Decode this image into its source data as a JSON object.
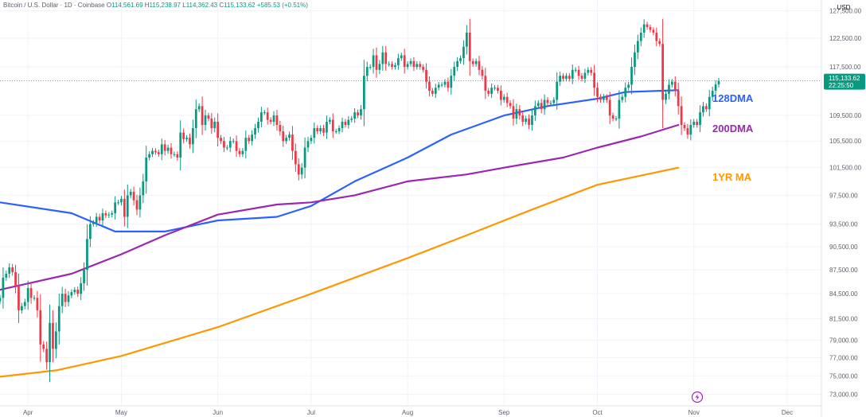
{
  "header": {
    "symbol": "Bitcoin / U.S. Dollar · 1D · Coinbase",
    "open_label": "O",
    "open": "114,561.69",
    "high_label": "H",
    "high": "115,238.97",
    "low_label": "L",
    "low": "114,362.43",
    "close_label": "C",
    "close": "115,133.62",
    "change": "+585.53 (+0.51%)",
    "currency": "USD"
  },
  "price_badge": {
    "price": "115,133.62",
    "countdown": "22:25:50",
    "value": 115133.62
  },
  "colors": {
    "up": "#089981",
    "down": "#f23645",
    "ma128": "#2962ff",
    "ma200": "#9c27b0",
    "ma1yr": "#ff9800"
  },
  "ma_labels": {
    "ma128": "128DMA",
    "ma200": "200DMA",
    "ma1yr": "1YR MA"
  },
  "icons": {
    "replay": "lightning-icon"
  },
  "chart_data": {
    "type": "candlestick",
    "title": "Bitcoin / U.S. Dollar · 1D · Coinbase",
    "x_axis": {
      "type": "date",
      "range": [
        "2025-03-23",
        "2025-12-12"
      ],
      "ticks": [
        {
          "date": "2025-04-01",
          "label": "Apr"
        },
        {
          "date": "2025-05-01",
          "label": "May"
        },
        {
          "date": "2025-06-01",
          "label": "Jun"
        },
        {
          "date": "2025-07-01",
          "label": "Jul"
        },
        {
          "date": "2025-08-01",
          "label": "Aug"
        },
        {
          "date": "2025-09-01",
          "label": "Sep"
        },
        {
          "date": "2025-10-01",
          "label": "Oct"
        },
        {
          "date": "2025-11-01",
          "label": "Nov"
        },
        {
          "date": "2025-12-01",
          "label": "Dec"
        }
      ]
    },
    "y_axis": {
      "scale": "log",
      "range": [
        71800,
        129500
      ],
      "ticks": [
        73000,
        75000,
        77000,
        79000,
        81500,
        84500,
        87500,
        90500,
        93500,
        97500,
        101500,
        105500,
        109500,
        117500,
        122500,
        127500
      ],
      "tick_labels": [
        "73,000.00",
        "75,000.00",
        "77,000.00",
        "79,000.00",
        "81,500.00",
        "84,500.00",
        "87,500.00",
        "90,500.00",
        "93,500.00",
        "97,500.00",
        "101,500.00",
        "105,500.00",
        "109,500.00",
        "117,500.00",
        "122,500.00",
        "127,500.00"
      ]
    },
    "candles": {
      "start_date": "2025-03-23",
      "close_path": [
        84000,
        86500,
        87000,
        87800,
        87200,
        85500,
        82500,
        83000,
        83500,
        85200,
        84000,
        84000,
        82500,
        78500,
        78000,
        76500,
        81000,
        78000,
        80000,
        83000,
        84500,
        83500,
        84300,
        84700,
        85000,
        84500,
        85800,
        87500,
        91500,
        93500,
        93700,
        94500,
        94000,
        95000,
        94700,
        94800,
        95000,
        96500,
        96500,
        97000,
        94500,
        97500,
        98000,
        96800,
        95500,
        97500,
        99500,
        103000,
        103500,
        104000,
        103800,
        103500,
        105000,
        104000,
        104500,
        103500,
        103500,
        103000,
        106800,
        105800,
        106000,
        105000,
        107500,
        110500,
        111000,
        108000,
        109500,
        109000,
        107500,
        108500,
        106000,
        105500,
        104500,
        104500,
        105500,
        105500,
        104000,
        103500,
        104000,
        106000,
        105500,
        106500,
        107500,
        108500,
        110000,
        110000,
        108800,
        108500,
        109500,
        108000,
        107000,
        105500,
        106000,
        106500,
        104000,
        102000,
        100500,
        101500,
        104500,
        105500,
        106000,
        107500,
        107000,
        107500,
        106800,
        108500,
        108800,
        107000,
        107000,
        107500,
        108500,
        108000,
        108800,
        109000,
        110000,
        109500,
        110500,
        116000,
        117500,
        117500,
        119500,
        117000,
        118000,
        120000,
        118000,
        118000,
        117500,
        117800,
        119000,
        119500,
        117500,
        118000,
        118500,
        117500,
        118000,
        117500,
        117000,
        115000,
        113500,
        113000,
        114000,
        114500,
        114500,
        115000,
        114000,
        116000,
        117500,
        118500,
        119000,
        121000,
        123500,
        118500,
        118000,
        118500,
        117000,
        116000,
        113500,
        113000,
        114000,
        114000,
        113500,
        112000,
        112500,
        111500,
        111000,
        109000,
        110500,
        109500,
        108500,
        109000,
        108000,
        109500,
        111000,
        111500,
        110500,
        112000,
        111500,
        111500,
        112000,
        115000,
        116000,
        115500,
        116000,
        115500,
        117000,
        117000,
        116000,
        115500,
        116500,
        117000,
        116500,
        114000,
        112500,
        112000,
        112500,
        112000,
        109500,
        109000,
        109000,
        112000,
        112500,
        114000,
        114500,
        117500,
        120000,
        122000,
        123500,
        125000,
        124500,
        124000,
        123500,
        122000,
        121500,
        112000,
        113000,
        114500,
        115000,
        113500,
        111000,
        108000,
        107500,
        106500,
        108000,
        108500,
        108000,
        110000,
        111000,
        110500,
        112500,
        113500,
        114548,
        115133.62
      ],
      "note": "daily OHLC, one candle per day; values approximate from chart"
    },
    "series": [
      {
        "name": "128DMA",
        "type": "line",
        "color": "#2962ff",
        "points": [
          [
            "2025-03-23",
            96500
          ],
          [
            "2025-04-15",
            95000
          ],
          [
            "2025-04-29",
            92500
          ],
          [
            "2025-05-15",
            92500
          ],
          [
            "2025-06-01",
            94000
          ],
          [
            "2025-06-20",
            94500
          ],
          [
            "2025-07-01",
            96000
          ],
          [
            "2025-07-15",
            99500
          ],
          [
            "2025-08-01",
            103000
          ],
          [
            "2025-08-15",
            106500
          ],
          [
            "2025-09-01",
            109500
          ],
          [
            "2025-09-15",
            111000
          ],
          [
            "2025-10-01",
            112200
          ],
          [
            "2025-10-10",
            113300
          ],
          [
            "2025-10-27",
            113600
          ]
        ]
      },
      {
        "name": "200DMA",
        "type": "line",
        "color": "#9c27b0",
        "points": [
          [
            "2025-03-23",
            85000
          ],
          [
            "2025-04-15",
            87000
          ],
          [
            "2025-05-01",
            89500
          ],
          [
            "2025-05-15",
            92000
          ],
          [
            "2025-06-01",
            94800
          ],
          [
            "2025-06-20",
            96200
          ],
          [
            "2025-07-01",
            96500
          ],
          [
            "2025-07-15",
            97500
          ],
          [
            "2025-08-01",
            99500
          ],
          [
            "2025-08-20",
            100500
          ],
          [
            "2025-09-01",
            101500
          ],
          [
            "2025-09-20",
            103000
          ],
          [
            "2025-10-01",
            104500
          ],
          [
            "2025-10-15",
            106200
          ],
          [
            "2025-10-27",
            108000
          ]
        ]
      },
      {
        "name": "1YR MA",
        "type": "line",
        "color": "#ff9800",
        "points": [
          [
            "2025-03-23",
            74900
          ],
          [
            "2025-04-10",
            75600
          ],
          [
            "2025-05-01",
            77200
          ],
          [
            "2025-06-01",
            80500
          ],
          [
            "2025-07-01",
            84500
          ],
          [
            "2025-08-01",
            89000
          ],
          [
            "2025-08-20",
            92000
          ],
          [
            "2025-09-10",
            95500
          ],
          [
            "2025-10-01",
            99000
          ],
          [
            "2025-10-27",
            101500
          ]
        ]
      }
    ]
  }
}
